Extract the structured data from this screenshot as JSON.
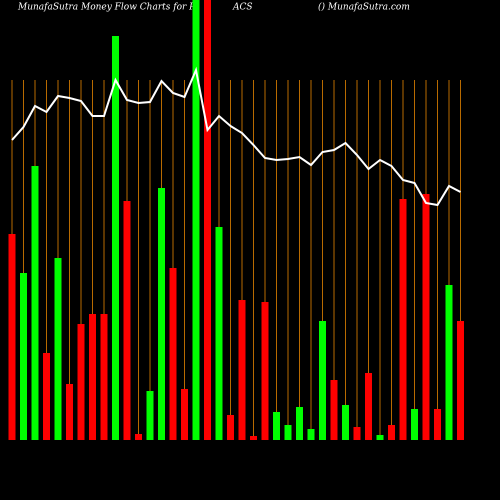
{
  "chart_data": {
    "type": "bar",
    "title_parts": [
      "MunafaSutra  Money Flow  Charts for P",
      "ACS",
      "() MunafaSutra.com"
    ],
    "categories": [
      null,
      null,
      null,
      null,
      null,
      null,
      null,
      null,
      null,
      null,
      null,
      null,
      null,
      null,
      null,
      null,
      null,
      null,
      null,
      null,
      null,
      null,
      null,
      null,
      null,
      null,
      null,
      null,
      null,
      null,
      null,
      null,
      null,
      null,
      null,
      null,
      null,
      null,
      null,
      null
    ],
    "values": [
      206,
      167,
      274,
      87,
      182,
      56,
      116,
      126,
      126,
      404,
      239,
      6,
      49,
      252,
      172,
      51,
      440,
      440,
      213,
      25,
      140,
      4,
      138,
      28,
      15,
      33,
      11,
      119,
      60,
      35,
      13,
      67,
      5,
      15,
      241,
      31,
      246,
      31,
      155,
      119
    ],
    "bar_colors": [
      "#ff0000",
      "#00ff00",
      "#00ff00",
      "#ff0000",
      "#00ff00",
      "#ff0000",
      "#ff0000",
      "#ff0000",
      "#ff0000",
      "#00ff00",
      "#ff0000",
      "#ff0000",
      "#00ff00",
      "#00ff00",
      "#ff0000",
      "#ff0000",
      "#00ff00",
      "#ff0000",
      "#00ff00",
      "#ff0000",
      "#ff0000",
      "#ff0000",
      "#ff0000",
      "#00ff00",
      "#00ff00",
      "#00ff00",
      "#00ff00",
      "#00ff00",
      "#ff0000",
      "#00ff00",
      "#ff0000",
      "#ff0000",
      "#00ff00",
      "#ff0000",
      "#ff0000",
      "#00ff00",
      "#ff0000",
      "#ff0000",
      "#00ff00",
      "#ff0000"
    ],
    "line_values": [
      300,
      313,
      334,
      328,
      344,
      342,
      339,
      324,
      324,
      360,
      340,
      337,
      338,
      359,
      347,
      343,
      370,
      310,
      324,
      314,
      307,
      295,
      282,
      280,
      281,
      283,
      275,
      288,
      290,
      297,
      285,
      271,
      280,
      274,
      260,
      257,
      237,
      235,
      254,
      248
    ],
    "line_color": "#ffffff",
    "grid_color": "#b86a00",
    "ylim": [
      0,
      440
    ]
  }
}
